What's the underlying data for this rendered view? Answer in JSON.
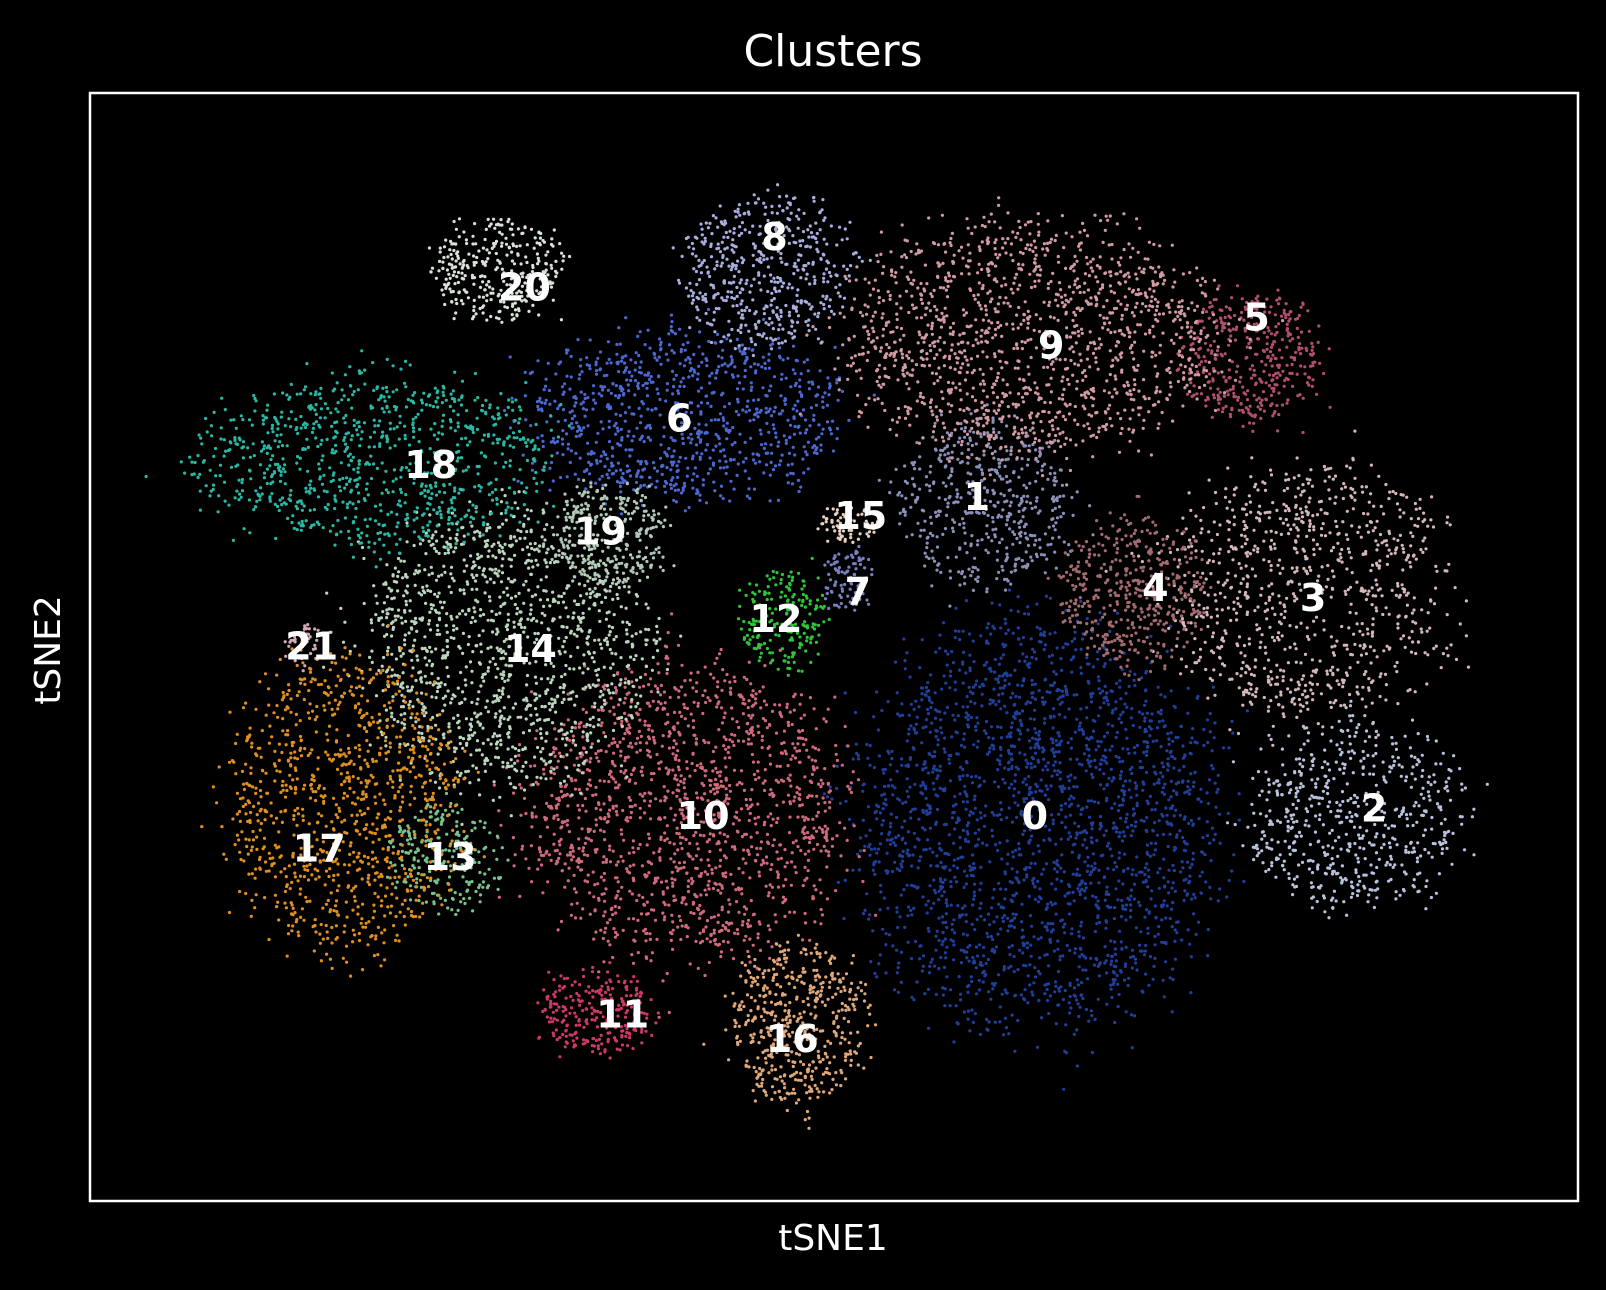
{
  "chart_data": {
    "type": "scatter",
    "title": "Clusters",
    "xlabel": "tSNE1",
    "ylabel": "tSNE2",
    "xlim": [
      0,
      100
    ],
    "ylim": [
      0,
      100
    ],
    "grid": false,
    "legend": "on data",
    "background": "#000000",
    "series": [
      {
        "label": "0",
        "color": "#1f3f9a",
        "cx": 63.5,
        "cy": 34.0,
        "rx": 12.5,
        "ry": 19.0,
        "n": 2200
      },
      {
        "label": "1",
        "color": "#8a90b8",
        "cx": 60.0,
        "cy": 63.0,
        "rx": 6.0,
        "ry": 8.0,
        "n": 500
      },
      {
        "label": "2",
        "color": "#b9c2dc",
        "cx": 85.0,
        "cy": 35.0,
        "rx": 7.5,
        "ry": 9.0,
        "n": 600
      },
      {
        "label": "3",
        "color": "#d4b7b8",
        "cx": 82.0,
        "cy": 55.0,
        "rx": 10.0,
        "ry": 12.0,
        "n": 900
      },
      {
        "label": "4",
        "color": "#a36a70",
        "cx": 70.0,
        "cy": 55.0,
        "rx": 5.0,
        "ry": 7.0,
        "n": 450
      },
      {
        "label": "5",
        "color": "#b05068",
        "cx": 78.0,
        "cy": 76.0,
        "rx": 5.0,
        "ry": 6.0,
        "n": 400
      },
      {
        "label": "6",
        "color": "#4a68d0",
        "cx": 40.0,
        "cy": 71.0,
        "rx": 11.0,
        "ry": 8.0,
        "n": 900
      },
      {
        "label": "7",
        "color": "#7680bc",
        "cx": 51.0,
        "cy": 56.0,
        "rx": 1.8,
        "ry": 3.0,
        "n": 90
      },
      {
        "label": "8",
        "color": "#a8aede",
        "cx": 45.5,
        "cy": 84.0,
        "rx": 6.0,
        "ry": 7.0,
        "n": 500
      },
      {
        "label": "9",
        "color": "#d29aa2",
        "cx": 63.0,
        "cy": 78.0,
        "rx": 13.0,
        "ry": 11.0,
        "n": 1400
      },
      {
        "label": "10",
        "color": "#cf6a7c",
        "cx": 40.0,
        "cy": 35.0,
        "rx": 11.0,
        "ry": 14.0,
        "n": 1500
      },
      {
        "label": "11",
        "color": "#cc3a64",
        "cx": 34.0,
        "cy": 17.0,
        "rx": 4.0,
        "ry": 4.0,
        "n": 250
      },
      {
        "label": "12",
        "color": "#2ec43a",
        "cx": 46.5,
        "cy": 52.5,
        "rx": 3.0,
        "ry": 4.5,
        "n": 200
      },
      {
        "label": "13",
        "color": "#78c48c",
        "cx": 24.0,
        "cy": 31.0,
        "rx": 4.0,
        "ry": 5.0,
        "n": 220
      },
      {
        "label": "14",
        "color": "#bcd6be",
        "cx": 28.0,
        "cy": 50.0,
        "rx": 10.0,
        "ry": 13.0,
        "n": 1300
      },
      {
        "label": "15",
        "color": "#e8d0c0",
        "cx": 51.0,
        "cy": 61.0,
        "rx": 2.0,
        "ry": 1.8,
        "n": 60
      },
      {
        "label": "16",
        "color": "#e0a878",
        "cx": 47.5,
        "cy": 16.0,
        "rx": 5.0,
        "ry": 7.5,
        "n": 500
      },
      {
        "label": "17",
        "color": "#e0901e",
        "cx": 17.0,
        "cy": 36.0,
        "rx": 8.0,
        "ry": 14.0,
        "n": 1000
      },
      {
        "label": "18",
        "color": "#2ab8a4",
        "cx": 19.0,
        "cy": 67.0,
        "rx": 12.0,
        "ry": 8.0,
        "n": 900
      },
      {
        "label": "19",
        "color": "#b0c8b8",
        "cx": 35.0,
        "cy": 60.0,
        "rx": 4.0,
        "ry": 5.0,
        "n": 300
      },
      {
        "label": "20",
        "color": "#d8e2d8",
        "cx": 27.5,
        "cy": 84.0,
        "rx": 4.5,
        "ry": 5.0,
        "n": 320
      },
      {
        "label": "21",
        "color": "#d0aab8",
        "cx": 14.5,
        "cy": 50.0,
        "rx": 1.5,
        "ry": 2.0,
        "n": 40
      }
    ],
    "annotations": [
      {
        "text": "0",
        "x": 63.5,
        "y": 34.5
      },
      {
        "text": "1",
        "x": 59.6,
        "y": 63.3
      },
      {
        "text": "2",
        "x": 86.3,
        "y": 35.2
      },
      {
        "text": "3",
        "x": 82.2,
        "y": 54.2
      },
      {
        "text": "4",
        "x": 71.6,
        "y": 55.1
      },
      {
        "text": "5",
        "x": 78.4,
        "y": 79.5
      },
      {
        "text": "6",
        "x": 39.6,
        "y": 70.4
      },
      {
        "text": "7",
        "x": 51.6,
        "y": 54.8
      },
      {
        "text": "8",
        "x": 46.0,
        "y": 86.8
      },
      {
        "text": "9",
        "x": 64.6,
        "y": 77.0
      },
      {
        "text": "10",
        "x": 41.2,
        "y": 34.5
      },
      {
        "text": "11",
        "x": 35.8,
        "y": 16.6
      },
      {
        "text": "12",
        "x": 46.1,
        "y": 52.3
      },
      {
        "text": "13",
        "x": 24.2,
        "y": 30.8
      },
      {
        "text": "14",
        "x": 29.6,
        "y": 49.6
      },
      {
        "text": "15",
        "x": 51.8,
        "y": 61.6
      },
      {
        "text": "16",
        "x": 47.2,
        "y": 14.4
      },
      {
        "text": "17",
        "x": 15.4,
        "y": 31.6
      },
      {
        "text": "18",
        "x": 22.9,
        "y": 66.2
      },
      {
        "text": "19",
        "x": 34.3,
        "y": 60.2
      },
      {
        "text": "20",
        "x": 29.2,
        "y": 82.2
      },
      {
        "text": "21",
        "x": 14.9,
        "y": 49.8
      }
    ]
  }
}
